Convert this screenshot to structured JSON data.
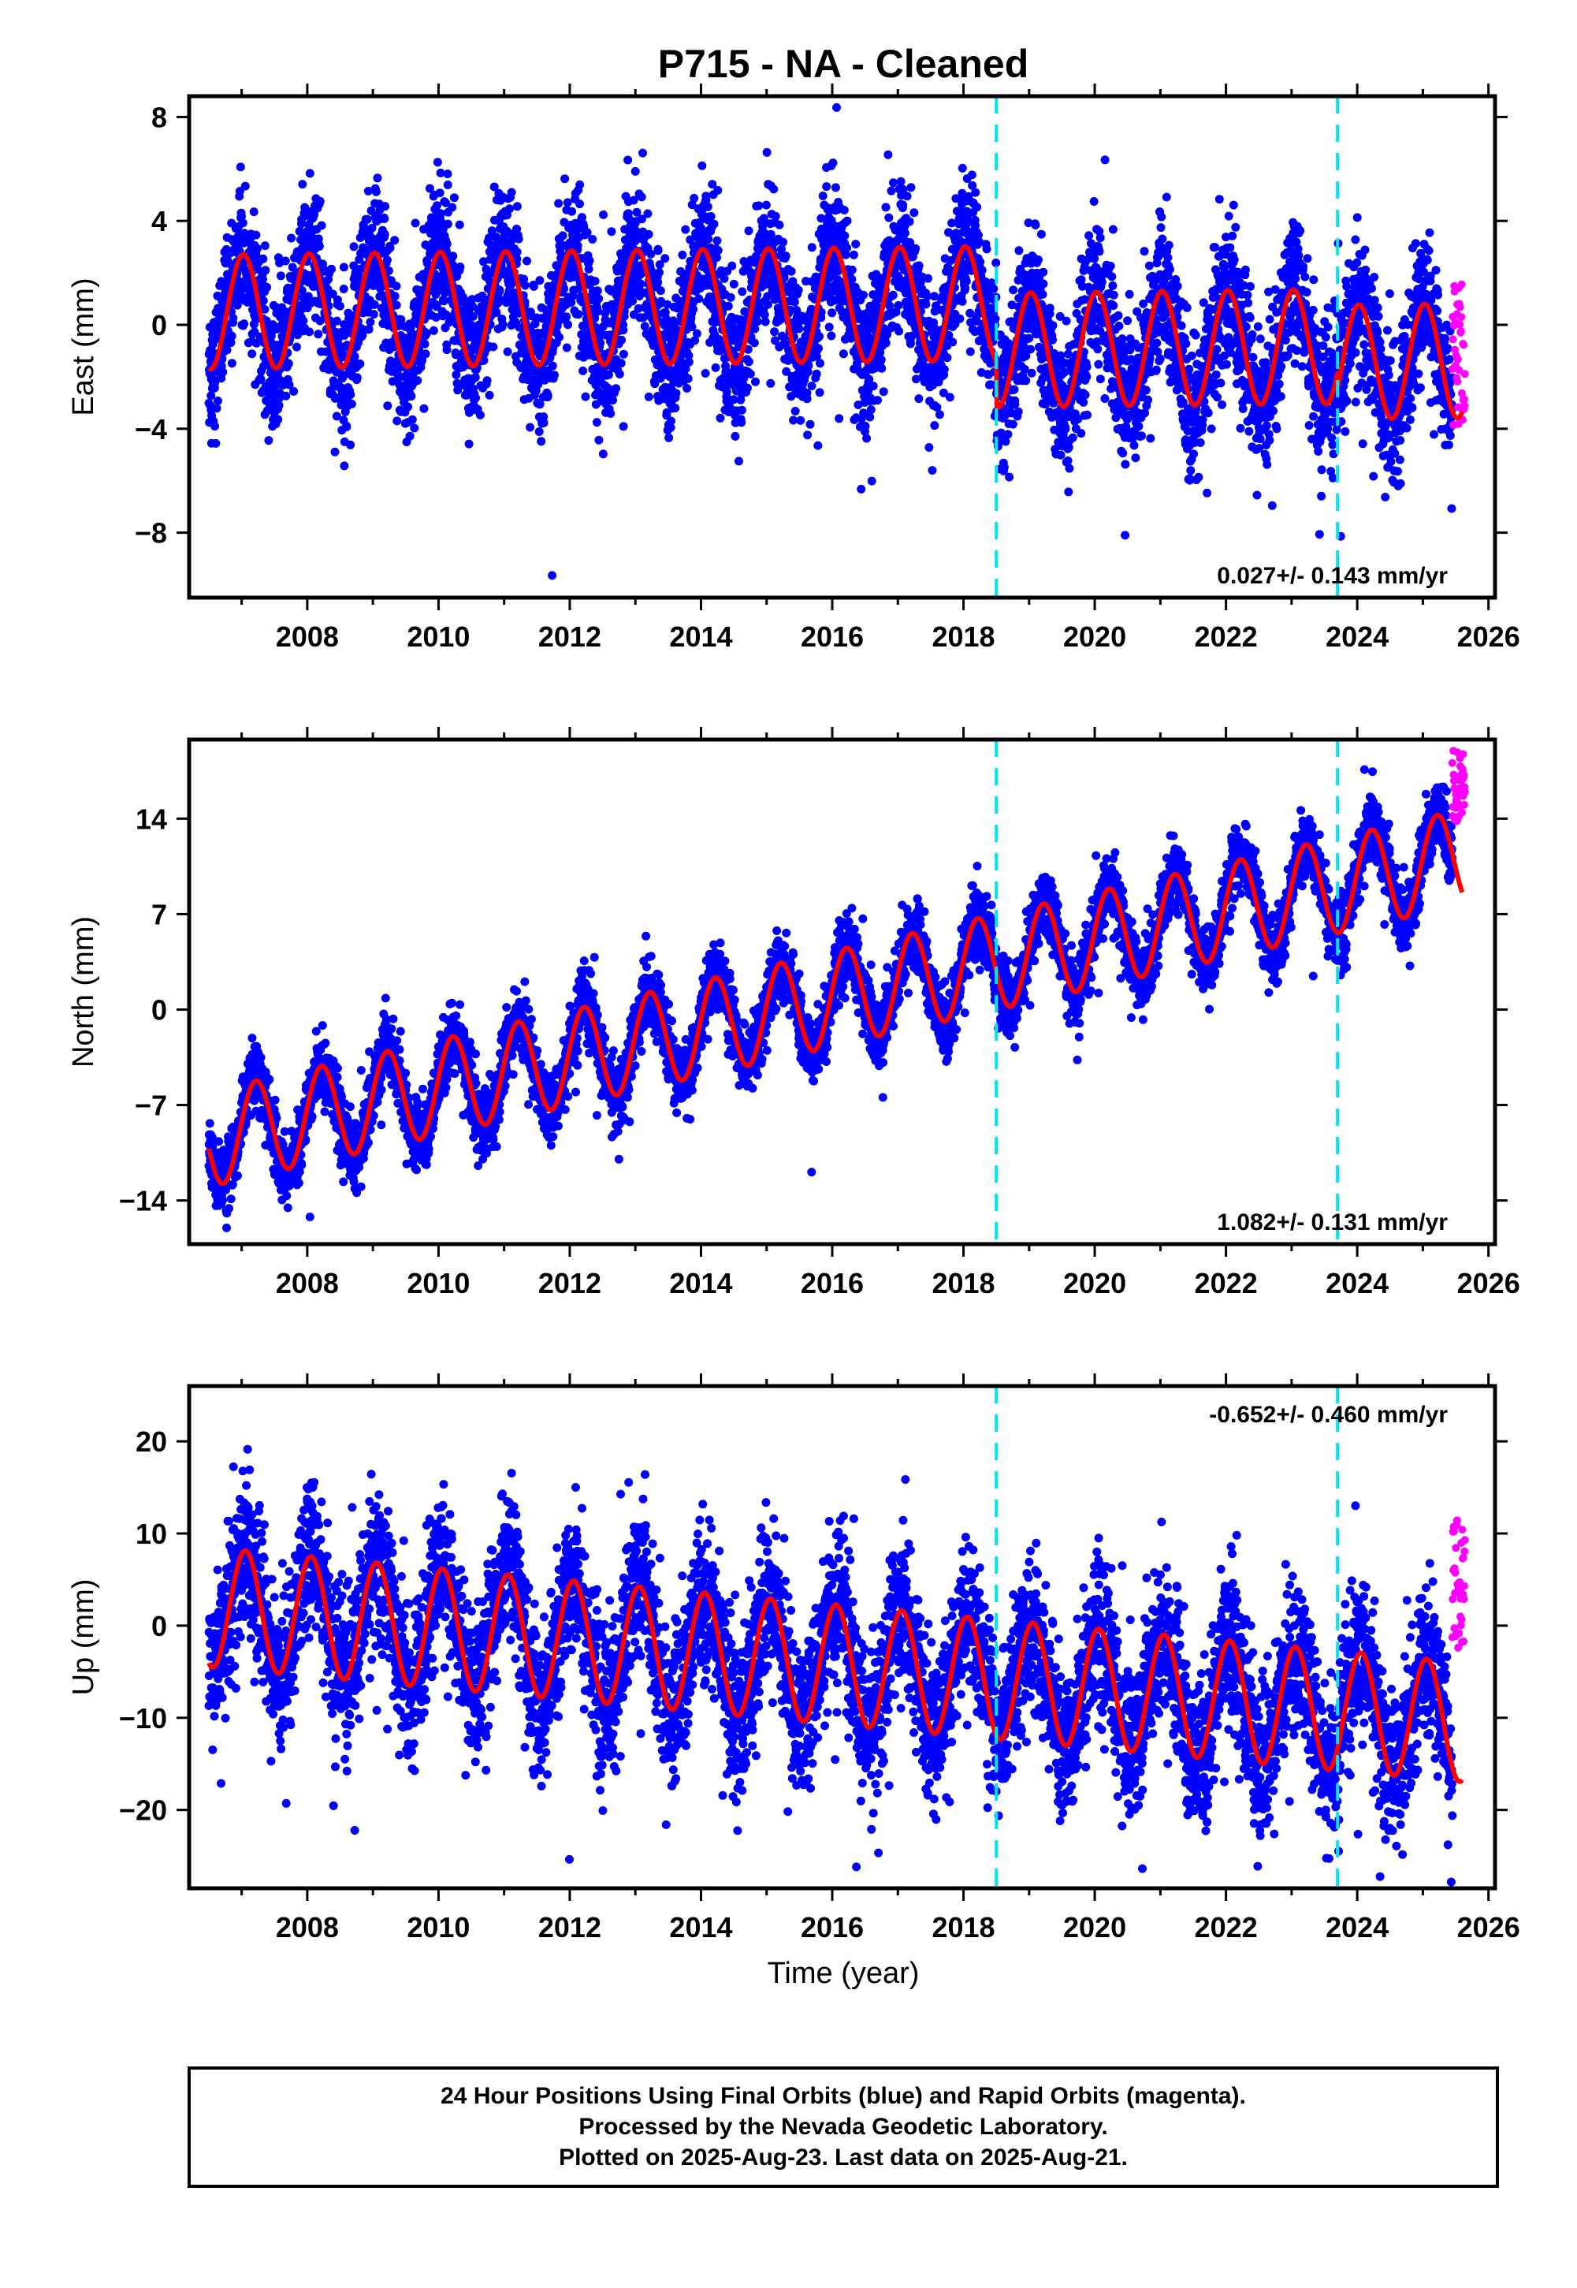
{
  "title": "P715  - NA - Cleaned",
  "xlabel": "Time (year)",
  "footer": [
    "24 Hour Positions Using Final Orbits (blue) and Rapid Orbits (magenta).",
    "Processed by the Nevada Geodetic Laboratory.",
    "Plotted on 2025-Aug-23. Last data on 2025-Aug-21."
  ],
  "colors": {
    "final_orbits": "#0000ff",
    "rapid_orbits": "#ff00ff",
    "model_fit": "#ff0000",
    "equipment_change": "#00e5ee",
    "axes": "#000000"
  },
  "chart_data": [
    {
      "type": "scatter",
      "panel": "east",
      "ylabel": "East (mm)",
      "rate": "0.027+/- 0.143 mm/yr",
      "rate_position": "bottom-right",
      "xlim": [
        2006.2,
        2026.1
      ],
      "ylim": [
        -10.5,
        8.8
      ],
      "xticks": [
        2008,
        2010,
        2012,
        2014,
        2016,
        2018,
        2020,
        2022,
        2024,
        2026
      ],
      "yticks": [
        -8,
        -4,
        0,
        4,
        8
      ],
      "series": [
        {
          "kind": "final",
          "x_range": [
            2006.5,
            2025.45
          ],
          "offset_before": 0.5,
          "offset_after": -1.3,
          "trend": 0.027,
          "annual_amplitude": 2.2,
          "phase": 1.4,
          "scatter": 1.3
        },
        {
          "kind": "rapid",
          "x_range": [
            2025.45,
            2025.64
          ],
          "values_range": [
            -4.0,
            1.8
          ]
        }
      ],
      "fit_offsets": [
        {
          "x": 2018.5,
          "step": -1.8
        },
        {
          "x": 2023.7,
          "step": -0.6
        }
      ],
      "breaks": [
        2018.5,
        2023.7
      ]
    },
    {
      "type": "scatter",
      "panel": "north",
      "ylabel": "North (mm)",
      "rate": "1.082+/- 0.131 mm/yr",
      "rate_position": "bottom-right",
      "xlim": [
        2006.2,
        2026.1
      ],
      "ylim": [
        -17.2,
        19.8
      ],
      "xticks": [
        2008,
        2010,
        2012,
        2014,
        2016,
        2018,
        2020,
        2022,
        2024,
        2026
      ],
      "yticks": [
        -14,
        -7,
        0,
        7,
        14
      ],
      "series": [
        {
          "kind": "final",
          "x_range": [
            2006.5,
            2025.45
          ],
          "start_value": -9.5,
          "trend": 1.082,
          "annual_amplitude": 3.5,
          "phase": 0.2,
          "scatter": 1.2
        },
        {
          "kind": "rapid",
          "x_range": [
            2025.45,
            2025.64
          ],
          "values_range": [
            13.5,
            19.0
          ]
        }
      ],
      "breaks": [
        2018.5,
        2023.7
      ]
    },
    {
      "type": "scatter",
      "panel": "up",
      "ylabel": "Up (mm)",
      "rate": "-0.652+/- 0.460 mm/yr",
      "rate_position": "top-right",
      "xlim": [
        2006.2,
        2026.1
      ],
      "ylim": [
        -28.5,
        26.0
      ],
      "xticks": [
        2008,
        2010,
        2012,
        2014,
        2016,
        2018,
        2020,
        2022,
        2024,
        2026
      ],
      "yticks": [
        -20,
        -10,
        0,
        10,
        20
      ],
      "series": [
        {
          "kind": "final",
          "x_range": [
            2006.5,
            2025.45
          ],
          "start_value": 2.0,
          "trend": -0.652,
          "annual_amplitude": 6.5,
          "phase": 1.2,
          "scatter": 4.0
        },
        {
          "kind": "rapid",
          "x_range": [
            2025.45,
            2025.64
          ],
          "values_range": [
            -3.0,
            11.5
          ]
        }
      ],
      "breaks": [
        2018.5,
        2023.7
      ]
    }
  ]
}
